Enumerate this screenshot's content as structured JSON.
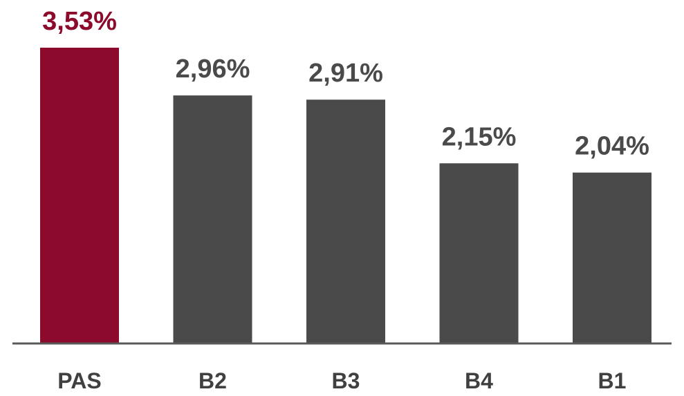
{
  "chart_data": {
    "type": "bar",
    "categories": [
      "PAS",
      "B2",
      "B3",
      "B4",
      "B1"
    ],
    "values": [
      3.53,
      2.96,
      2.91,
      2.15,
      2.04
    ],
    "value_labels": [
      "3,53%",
      "2,96%",
      "2,91%",
      "2,15%",
      "2,04%"
    ],
    "ylim": [
      0,
      3.53
    ],
    "grid": false,
    "legend": "none",
    "colors": {
      "highlight": "#8C0A2B",
      "default": "#4A4A4A",
      "axis": "#595959",
      "highlight_label": "#8C0A2B",
      "default_label": "#4A4A4A",
      "category_label": "#404040"
    },
    "highlight_index": 0
  }
}
